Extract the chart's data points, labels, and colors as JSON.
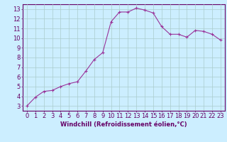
{
  "x": [
    0,
    1,
    2,
    3,
    4,
    5,
    6,
    7,
    8,
    9,
    10,
    11,
    12,
    13,
    14,
    15,
    16,
    17,
    18,
    19,
    20,
    21,
    22,
    23
  ],
  "y": [
    3.0,
    3.9,
    4.5,
    4.6,
    5.0,
    5.3,
    5.5,
    6.6,
    7.8,
    8.5,
    11.7,
    12.7,
    12.7,
    13.1,
    12.9,
    12.6,
    11.2,
    10.4,
    10.4,
    10.1,
    10.8,
    10.7,
    10.4,
    9.8
  ],
  "line_color": "#993399",
  "marker": "+",
  "marker_size": 3,
  "bg_color": "#cceeff",
  "grid_color": "#aacccc",
  "tick_color": "#660066",
  "xlabel": "Windchill (Refroidissement éolien,°C)",
  "ylabel_ticks": [
    3,
    4,
    5,
    6,
    7,
    8,
    9,
    10,
    11,
    12,
    13
  ],
  "xlim": [
    -0.5,
    23.5
  ],
  "ylim": [
    2.5,
    13.5
  ],
  "xlabel_fontsize": 6,
  "tick_fontsize": 6,
  "spine_color": "#660066",
  "fig_width": 3.2,
  "fig_height": 2.0,
  "dpi": 100
}
